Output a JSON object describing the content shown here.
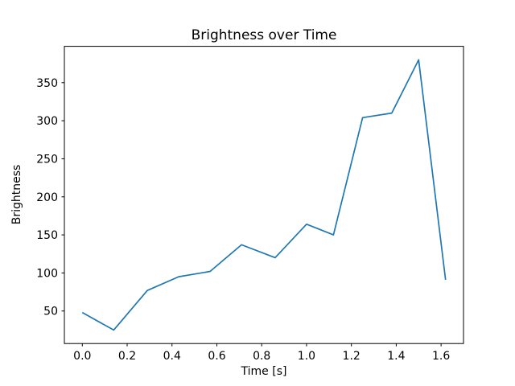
{
  "chart_data": {
    "type": "line",
    "title": "Brightness over Time",
    "xlabel": "Time [s]",
    "ylabel": "Brightness",
    "x": [
      0.0,
      0.14,
      0.29,
      0.43,
      0.57,
      0.71,
      0.86,
      1.0,
      1.12,
      1.25,
      1.38,
      1.5,
      1.62
    ],
    "y": [
      48,
      25,
      77,
      95,
      102,
      137,
      120,
      164,
      150,
      304,
      310,
      380,
      91
    ],
    "xticks": [
      0.0,
      0.2,
      0.4,
      0.6,
      0.8,
      1.0,
      1.2,
      1.4,
      1.6
    ],
    "xtick_labels": [
      "0.0",
      "0.2",
      "0.4",
      "0.6",
      "0.8",
      "1.0",
      "1.2",
      "1.4",
      "1.6"
    ],
    "yticks": [
      50,
      100,
      150,
      200,
      250,
      300,
      350
    ],
    "ytick_labels": [
      "50",
      "100",
      "150",
      "200",
      "250",
      "300",
      "350"
    ],
    "xlim": [
      -0.08,
      1.7
    ],
    "ylim": [
      7.25,
      397.75
    ],
    "grid": false,
    "legend": false,
    "line_color": "#1f77b4",
    "axes_color": "#000000",
    "background_color": "#ffffff"
  }
}
